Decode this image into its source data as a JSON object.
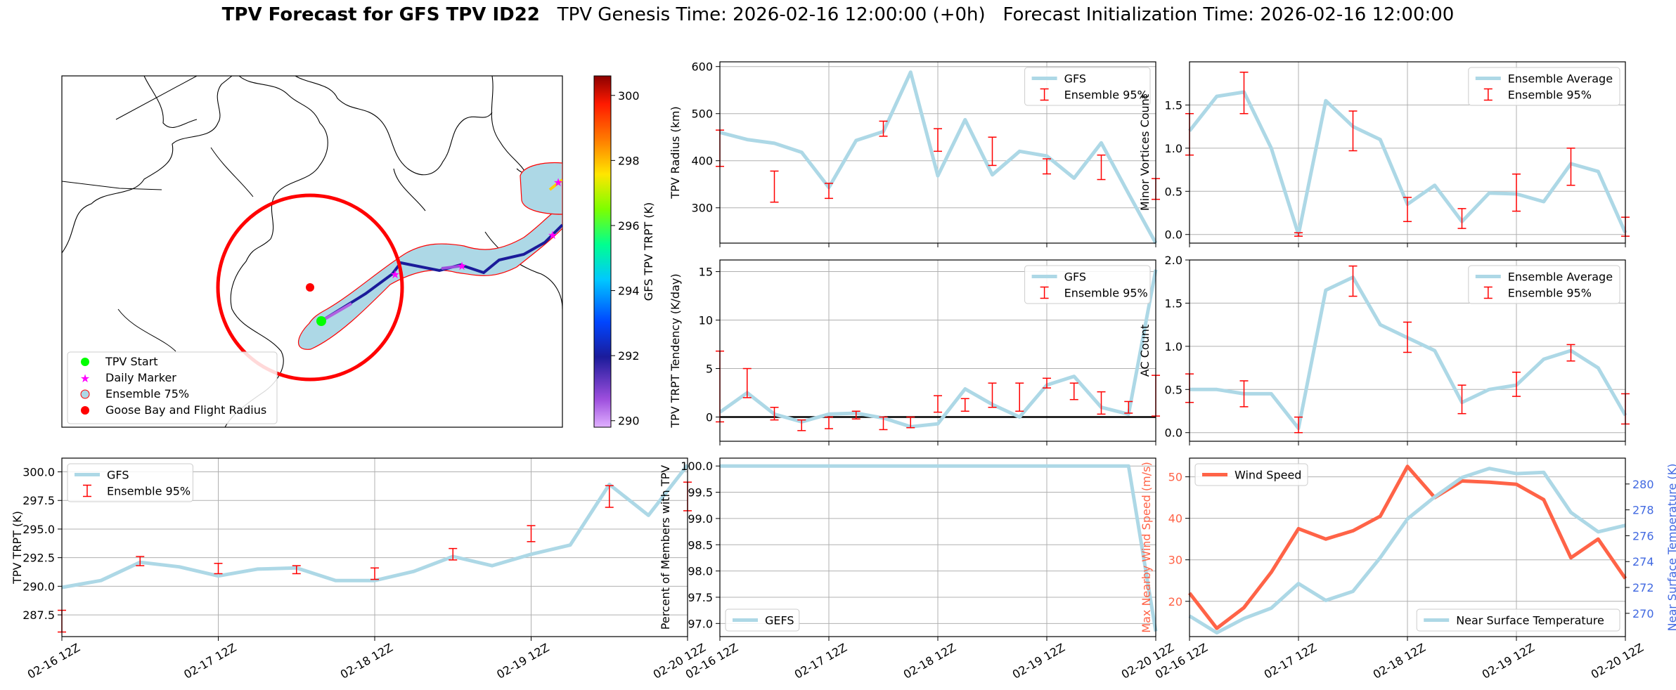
{
  "title": {
    "main": "TPV Forecast for GFS TPV ID22",
    "genesis": "TPV Genesis Time: 2026-02-16 12:00:00 (+0h)",
    "init": "Forecast Initialization Time: 2026-02-16 12:00:00"
  },
  "colors": {
    "line": "#add8e6",
    "error": "#ff0000",
    "wind": "#ff6347",
    "temp_axis": "#4169e1",
    "grid": "#b0b0b0",
    "circle": "#ff0000",
    "start": "#00ff00",
    "marker": "#ff00ff",
    "goose_bay": "#ff0000"
  },
  "map": {
    "colorbar_label": "GFS TPV TRPT (K)",
    "colorbar_ticks": [
      290,
      292,
      294,
      296,
      298,
      300
    ],
    "colorbar_range": [
      289.8,
      300.6
    ],
    "legend": [
      "TPV Start",
      "Daily Marker",
      "Ensemble 75%",
      "Goose Bay and Flight Radius"
    ]
  },
  "chart_data": [
    {
      "id": "radius",
      "type": "line",
      "title": "",
      "xlabel": "",
      "ylabel": "TPV Radius (km)",
      "xlim": [
        0,
        16
      ],
      "ylim": [
        225,
        610
      ],
      "yticks": [
        300,
        400,
        500,
        600
      ],
      "ytick_labels": [
        "300",
        "400",
        "500",
        "600"
      ],
      "legend": [
        "GFS",
        "Ensemble 95%"
      ],
      "legend_pos": "upper-right",
      "show_xtick_labels": false,
      "series": [
        {
          "name": "GFS",
          "x": [
            0,
            1,
            2,
            3,
            4,
            5,
            6,
            7,
            8,
            9,
            10,
            11,
            12,
            13,
            14,
            15,
            16
          ],
          "values": [
            460,
            445,
            437,
            418,
            343,
            443,
            462,
            588,
            368,
            487,
            370,
            420,
            410,
            363,
            438,
            330,
            225
          ]
        }
      ],
      "errorbars": [
        {
          "x": 0,
          "low": 388,
          "high": 465
        },
        {
          "x": 2,
          "low": 312,
          "high": 378
        },
        {
          "x": 4,
          "low": 320,
          "high": 352
        },
        {
          "x": 6,
          "low": 452,
          "high": 484
        },
        {
          "x": 8,
          "low": 420,
          "high": 468
        },
        {
          "x": 10,
          "low": 390,
          "high": 450
        },
        {
          "x": 12,
          "low": 372,
          "high": 404
        },
        {
          "x": 14,
          "low": 360,
          "high": 412
        },
        {
          "x": 16,
          "low": 318,
          "high": 362
        }
      ]
    },
    {
      "id": "minor_vortices",
      "type": "line",
      "title": "",
      "xlabel": "",
      "ylabel": "Minor Vortices Count",
      "xlim": [
        0,
        16
      ],
      "ylim": [
        -0.1,
        2.0
      ],
      "yticks": [
        0,
        0.5,
        1.0,
        1.5
      ],
      "ytick_labels": [
        "0.0",
        "0.5",
        "1.0",
        "1.5"
      ],
      "legend": [
        "Ensemble Average",
        "Ensemble 95%"
      ],
      "legend_pos": "upper-right",
      "show_xtick_labels": false,
      "series": [
        {
          "name": "Ensemble Average",
          "x": [
            0,
            1,
            2,
            3,
            4,
            5,
            6,
            7,
            8,
            9,
            10,
            11,
            12,
            13,
            14,
            15,
            16
          ],
          "values": [
            1.2,
            1.6,
            1.65,
            1.0,
            0.0,
            1.55,
            1.25,
            1.1,
            0.35,
            0.57,
            0.15,
            0.48,
            0.47,
            0.38,
            0.82,
            0.73,
            0.02
          ]
        }
      ],
      "errorbars": [
        {
          "x": 0,
          "low": 0.92,
          "high": 1.4
        },
        {
          "x": 2,
          "low": 1.4,
          "high": 1.88
        },
        {
          "x": 4,
          "low": -0.02,
          "high": 0.02
        },
        {
          "x": 6,
          "low": 0.97,
          "high": 1.43
        },
        {
          "x": 8,
          "low": 0.15,
          "high": 0.43
        },
        {
          "x": 10,
          "low": 0.07,
          "high": 0.3
        },
        {
          "x": 12,
          "low": 0.27,
          "high": 0.7
        },
        {
          "x": 14,
          "low": 0.57,
          "high": 1.0
        },
        {
          "x": 16,
          "low": -0.02,
          "high": 0.2
        }
      ]
    },
    {
      "id": "tendency",
      "type": "line",
      "title": "",
      "xlabel": "",
      "ylabel": "TPV TRPT Tendency (K/day)",
      "xlim": [
        0,
        16
      ],
      "ylim": [
        -2.5,
        16.2
      ],
      "yticks": [
        0,
        5,
        10,
        15
      ],
      "ytick_labels": [
        "0",
        "5",
        "10",
        "15"
      ],
      "legend": [
        "GFS",
        "Ensemble 95%"
      ],
      "legend_pos": "upper-right",
      "show_xtick_labels": false,
      "zero_line": true,
      "series": [
        {
          "name": "GFS",
          "x": [
            0,
            1,
            2,
            3,
            4,
            5,
            6,
            7,
            8,
            9,
            10,
            11,
            12,
            13,
            14,
            15,
            16
          ],
          "values": [
            0.5,
            2.5,
            0.3,
            -0.5,
            0.3,
            0.4,
            -0.1,
            -1.0,
            -0.7,
            2.9,
            1.3,
            0.0,
            3.3,
            4.2,
            1.0,
            0.3,
            15.2
          ]
        }
      ],
      "errorbars": [
        {
          "x": 0,
          "low": -0.5,
          "high": 6.8
        },
        {
          "x": 1,
          "low": 2.0,
          "high": 5.0
        },
        {
          "x": 2,
          "low": -0.3,
          "high": 1.0
        },
        {
          "x": 3,
          "low": -1.4,
          "high": -0.3
        },
        {
          "x": 4,
          "low": -1.2,
          "high": 0.0
        },
        {
          "x": 5,
          "low": -0.2,
          "high": 0.6
        },
        {
          "x": 6,
          "low": -1.3,
          "high": 0.0
        },
        {
          "x": 7,
          "low": -1.1,
          "high": 0.0
        },
        {
          "x": 8,
          "low": 0.5,
          "high": 2.2
        },
        {
          "x": 9,
          "low": 0.6,
          "high": 1.9
        },
        {
          "x": 10,
          "low": 1.0,
          "high": 3.5
        },
        {
          "x": 11,
          "low": 0.6,
          "high": 3.5
        },
        {
          "x": 12,
          "low": 3.0,
          "high": 4.0
        },
        {
          "x": 13,
          "low": 1.8,
          "high": 3.5
        },
        {
          "x": 14,
          "low": 0.3,
          "high": 2.6
        },
        {
          "x": 15,
          "low": 0.4,
          "high": 1.6
        },
        {
          "x": 16,
          "low": 0.1,
          "high": 4.3
        }
      ]
    },
    {
      "id": "ac_count",
      "type": "line",
      "title": "",
      "xlabel": "",
      "ylabel": "AC Count",
      "xlim": [
        0,
        16
      ],
      "ylim": [
        -0.1,
        2.0
      ],
      "yticks": [
        0,
        0.5,
        1.0,
        1.5,
        2.0
      ],
      "ytick_labels": [
        "0.0",
        "0.5",
        "1.0",
        "1.5",
        "2.0"
      ],
      "legend": [
        "Ensemble Average",
        "Ensemble 95%"
      ],
      "legend_pos": "upper-right",
      "show_xtick_labels": false,
      "series": [
        {
          "name": "Ensemble Average",
          "x": [
            0,
            1,
            2,
            3,
            4,
            5,
            6,
            7,
            8,
            9,
            10,
            11,
            12,
            13,
            14,
            15,
            16
          ],
          "values": [
            0.5,
            0.5,
            0.45,
            0.45,
            0.05,
            1.65,
            1.8,
            1.25,
            1.1,
            0.95,
            0.35,
            0.5,
            0.55,
            0.85,
            0.95,
            0.75,
            0.2
          ]
        }
      ],
      "errorbars": [
        {
          "x": 0,
          "low": 0.35,
          "high": 0.68
        },
        {
          "x": 2,
          "low": 0.3,
          "high": 0.6
        },
        {
          "x": 4,
          "low": 0.0,
          "high": 0.18
        },
        {
          "x": 6,
          "low": 1.58,
          "high": 1.93
        },
        {
          "x": 8,
          "low": 0.93,
          "high": 1.28
        },
        {
          "x": 10,
          "low": 0.22,
          "high": 0.55
        },
        {
          "x": 12,
          "low": 0.42,
          "high": 0.7
        },
        {
          "x": 14,
          "low": 0.83,
          "high": 1.02
        },
        {
          "x": 16,
          "low": 0.1,
          "high": 0.45
        }
      ]
    },
    {
      "id": "trpt",
      "type": "line",
      "title": "",
      "xlabel": "",
      "ylabel": "TPV TRPT (K)",
      "xlim": [
        0,
        16
      ],
      "ylim": [
        285.6,
        301.2
      ],
      "yticks": [
        287.5,
        290.0,
        292.5,
        295.0,
        297.5,
        300.0
      ],
      "ytick_labels": [
        "287.5",
        "290.0",
        "292.5",
        "295.0",
        "297.5",
        "300.0"
      ],
      "legend": [
        "GFS",
        "Ensemble 95%"
      ],
      "legend_pos": "upper-left",
      "show_xtick_labels": true,
      "series": [
        {
          "name": "GFS",
          "x": [
            0,
            1,
            2,
            3,
            4,
            5,
            6,
            7,
            8,
            9,
            10,
            11,
            12,
            13,
            14,
            15,
            16
          ],
          "values": [
            289.9,
            290.5,
            292.1,
            291.7,
            290.9,
            291.5,
            291.6,
            290.5,
            290.5,
            291.3,
            292.6,
            291.8,
            292.8,
            293.6,
            298.9,
            296.2,
            300.6
          ]
        }
      ],
      "errorbars": [
        {
          "x": 0,
          "low": 286.0,
          "high": 287.9
        },
        {
          "x": 2,
          "low": 291.8,
          "high": 292.6
        },
        {
          "x": 4,
          "low": 291.1,
          "high": 292.0
        },
        {
          "x": 6,
          "low": 291.1,
          "high": 291.8
        },
        {
          "x": 8,
          "low": 290.6,
          "high": 291.6
        },
        {
          "x": 10,
          "low": 292.3,
          "high": 293.3
        },
        {
          "x": 12,
          "low": 293.9,
          "high": 295.3
        },
        {
          "x": 14,
          "low": 296.9,
          "high": 298.8
        },
        {
          "x": 16,
          "low": 296.6,
          "high": 299.1
        }
      ]
    },
    {
      "id": "percent",
      "type": "line",
      "title": "",
      "xlabel": "",
      "ylabel": "Percent of Members with TPV",
      "xlim": [
        0,
        16
      ],
      "ylim": [
        96.75,
        100.15
      ],
      "yticks": [
        97.0,
        97.5,
        98.0,
        98.5,
        99.0,
        99.5,
        100.0
      ],
      "ytick_labels": [
        "97.0",
        "97.5",
        "98.0",
        "98.5",
        "99.0",
        "99.5",
        "100.0"
      ],
      "legend": [
        "GEFS"
      ],
      "legend_pos": "lower-left",
      "show_xtick_labels": true,
      "series": [
        {
          "name": "GEFS",
          "x": [
            0,
            1,
            2,
            3,
            4,
            5,
            6,
            7,
            8,
            9,
            10,
            11,
            12,
            13,
            14,
            15,
            16
          ],
          "values": [
            100,
            100,
            100,
            100,
            100,
            100,
            100,
            100,
            100,
            100,
            100,
            100,
            100,
            100,
            100,
            100,
            96.85
          ]
        }
      ],
      "errorbars": []
    },
    {
      "id": "wind_temp",
      "type": "line",
      "title": "",
      "xlabel": "",
      "ylabel": "Max Nearby Wind Speed (m/s)",
      "ylabel_right": "Near Surface Temperature (K)",
      "xlim": [
        0,
        16
      ],
      "ylim": [
        11.5,
        54.5
      ],
      "ylim_right": [
        268.2,
        282
      ],
      "yticks": [
        20,
        30,
        40,
        50
      ],
      "ytick_labels": [
        "20",
        "30",
        "40",
        "50"
      ],
      "yticks_right": [
        270,
        272,
        274,
        276,
        278,
        280
      ],
      "ytick_labels_right": [
        "270",
        "272",
        "274",
        "276",
        "278",
        "280"
      ],
      "legend": [
        "Wind Speed"
      ],
      "legend_right": [
        "Near Surface Temperature"
      ],
      "show_xtick_labels": true,
      "series": [
        {
          "name": "Wind Speed",
          "axis": "left",
          "x": [
            0,
            1,
            2,
            3,
            4,
            5,
            6,
            7,
            8,
            9,
            10,
            11,
            12,
            13,
            14,
            15,
            16
          ],
          "values": [
            22,
            13.5,
            18.5,
            27,
            37.5,
            35,
            37,
            40.5,
            52.5,
            45,
            49,
            48.7,
            48.2,
            44.5,
            30.5,
            35,
            25.5
          ]
        },
        {
          "name": "Near Surface Temperature",
          "axis": "right",
          "x": [
            0,
            1,
            2,
            3,
            4,
            5,
            6,
            7,
            8,
            9,
            10,
            11,
            12,
            13,
            14,
            15,
            16
          ],
          "values": [
            269.8,
            268.5,
            269.6,
            270.4,
            272.3,
            271,
            271.7,
            274.3,
            277.3,
            279,
            280.5,
            281.2,
            280.8,
            280.9,
            277.8,
            276.3,
            276.8
          ]
        }
      ],
      "errorbars": []
    }
  ],
  "x_tick_labels": [
    "02-16 12Z",
    "02-17 12Z",
    "02-18 12Z",
    "02-19 12Z",
    "02-20 12Z"
  ],
  "x_tick_positions": [
    0,
    4,
    8,
    12,
    16
  ]
}
